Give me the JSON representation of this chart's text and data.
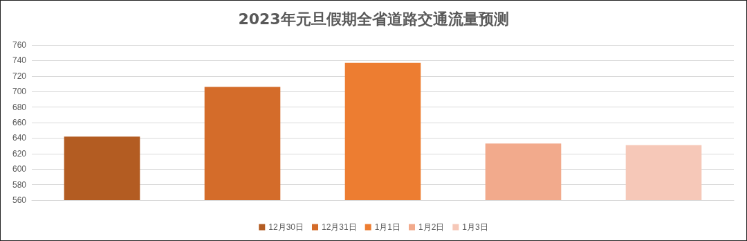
{
  "chart_data": {
    "type": "bar",
    "title": "2023年元旦假期全省道路交通流量预测",
    "categories": [
      null,
      null,
      null,
      null,
      null
    ],
    "series": [
      {
        "name": "12月30日",
        "color": "#b35c22",
        "values": [
          642,
          null,
          null,
          null,
          null
        ]
      },
      {
        "name": "12月31日",
        "color": "#d46c2a",
        "values": [
          null,
          706,
          null,
          null,
          null
        ]
      },
      {
        "name": "1月1日",
        "color": "#ed7d31",
        "values": [
          null,
          null,
          737,
          null,
          null
        ]
      },
      {
        "name": "1月2日",
        "color": "#f2aa8c",
        "values": [
          null,
          null,
          null,
          633,
          null
        ]
      },
      {
        "name": "1月3日",
        "color": "#f6c8b8",
        "values": [
          null,
          null,
          null,
          null,
          631
        ]
      }
    ],
    "ylim": [
      560,
      760
    ],
    "yticks": [
      560,
      580,
      600,
      620,
      640,
      660,
      680,
      700,
      720,
      740,
      760
    ],
    "grid": "y",
    "legend": "bottom",
    "tick_labels": "y"
  }
}
